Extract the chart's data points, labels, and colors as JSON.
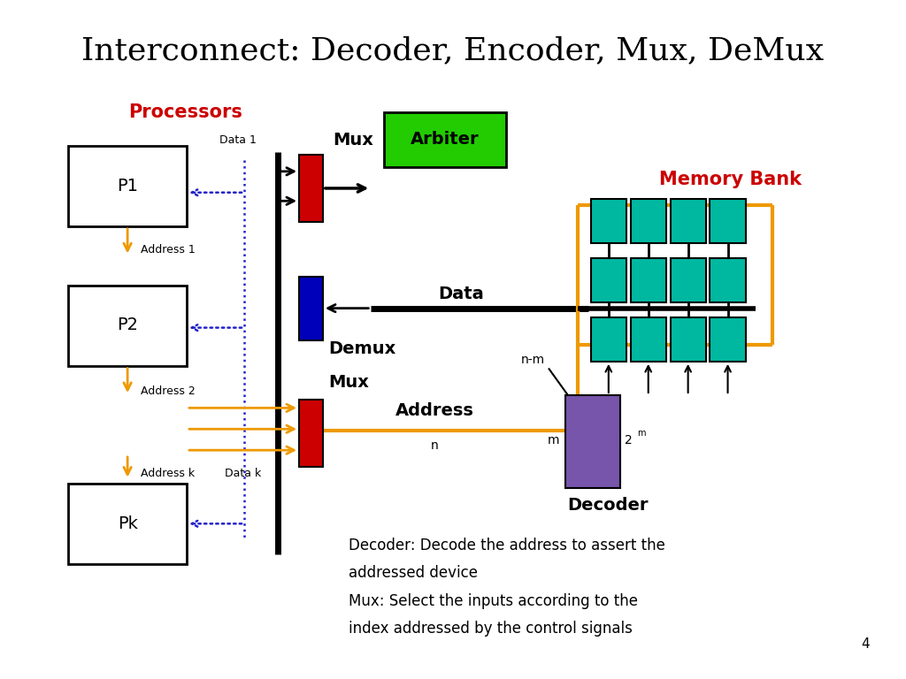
{
  "title": "Interconnect: Decoder, Encoder, Mux, DeMux",
  "title_fontsize": 26,
  "bg_color": "#ffffff",
  "processor_label": "Processors",
  "memory_label": "Memory Bank",
  "arbiter_label": "Arbiter",
  "mux_data_color": "#cc0000",
  "demux_color": "#0000bb",
  "mux_addr_color": "#cc0000",
  "decoder_color": "#7755aa",
  "teal_color": "#00b8a0",
  "green_color": "#22cc00",
  "orange_color": "#ee9900",
  "blue_dotted": "#2222cc",
  "black": "#000000",
  "white": "#ffffff"
}
